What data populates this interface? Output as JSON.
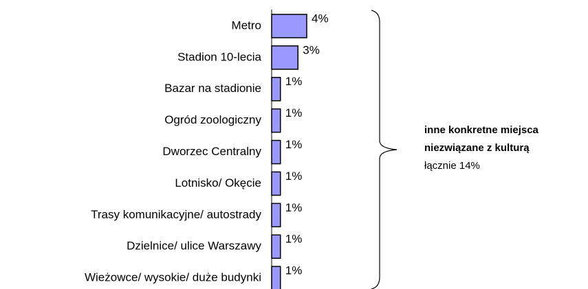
{
  "chart_data": {
    "type": "bar",
    "orientation": "horizontal",
    "categories": [
      "Metro",
      "Stadion 10-lecia",
      "Bazar na stadionie",
      "Ogród zoologiczny",
      "Dworzec Centralny",
      "Lotnisko/ Okęcie",
      "Trasy komunikacyjne/ autostrady",
      "Dzielnice/ ulice Warszawy",
      "Wieżowce/ wysokie/ duże budynki"
    ],
    "values": [
      4,
      3,
      1,
      1,
      1,
      1,
      1,
      1,
      1
    ],
    "value_labels": [
      "4%",
      "3%",
      "1%",
      "1%",
      "1%",
      "1%",
      "1%",
      "1%",
      "1%"
    ],
    "color": "#9999ff",
    "annotation": {
      "lines": [
        "inne konkretne miejsca",
        "niezwiązane z kulturą"
      ],
      "total": "łącznie 14%"
    }
  }
}
